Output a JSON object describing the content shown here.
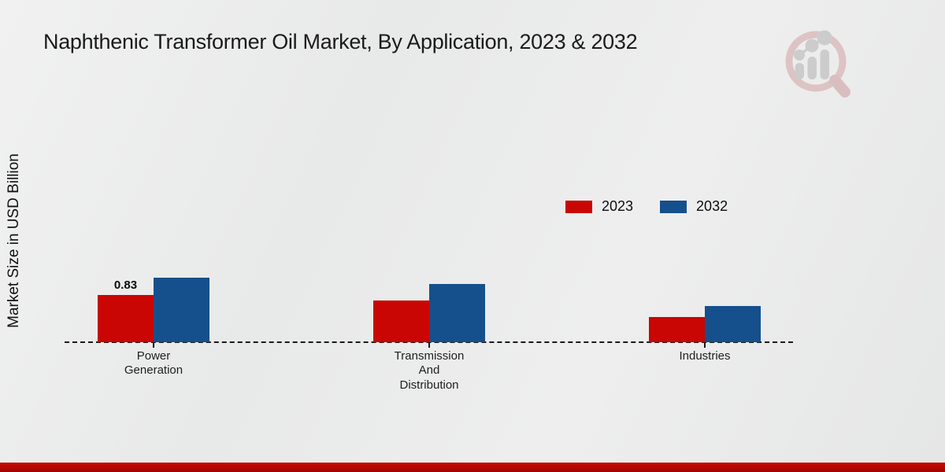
{
  "title": "Naphthenic Transformer Oil Market, By Application, 2023 & 2032",
  "ylabel": "Market Size in USD Billion",
  "logo": {
    "name": "magnifier-bar-chart-logo"
  },
  "colors": {
    "series_2023": "#c90603",
    "series_2032": "#15508c",
    "footer_band": "#b60702",
    "background": "#eaebeb",
    "baseline": "#1a1a1a"
  },
  "chart_data": {
    "type": "bar",
    "title": "Naphthenic Transformer Oil Market, By Application, 2023 & 2032",
    "xlabel": "",
    "ylabel": "Market Size in USD Billion",
    "categories": [
      "Power Generation",
      "Transmission And Distribution",
      "Industries"
    ],
    "category_lines": [
      [
        "Power",
        "Generation"
      ],
      [
        "Transmission",
        "And",
        "Distribution"
      ],
      [
        "Industries"
      ]
    ],
    "series": [
      {
        "name": "2023",
        "color": "#c90603",
        "values": [
          0.83,
          0.73,
          0.44
        ]
      },
      {
        "name": "2032",
        "color": "#15508c",
        "values": [
          1.13,
          1.02,
          0.64
        ]
      }
    ],
    "data_labels": [
      {
        "series_index": 0,
        "category_index": 0,
        "text": "0.83"
      }
    ],
    "ylim": [
      0,
      1.3
    ],
    "grid": false,
    "axis_line": "dashed",
    "legend_position": "middle-right"
  }
}
